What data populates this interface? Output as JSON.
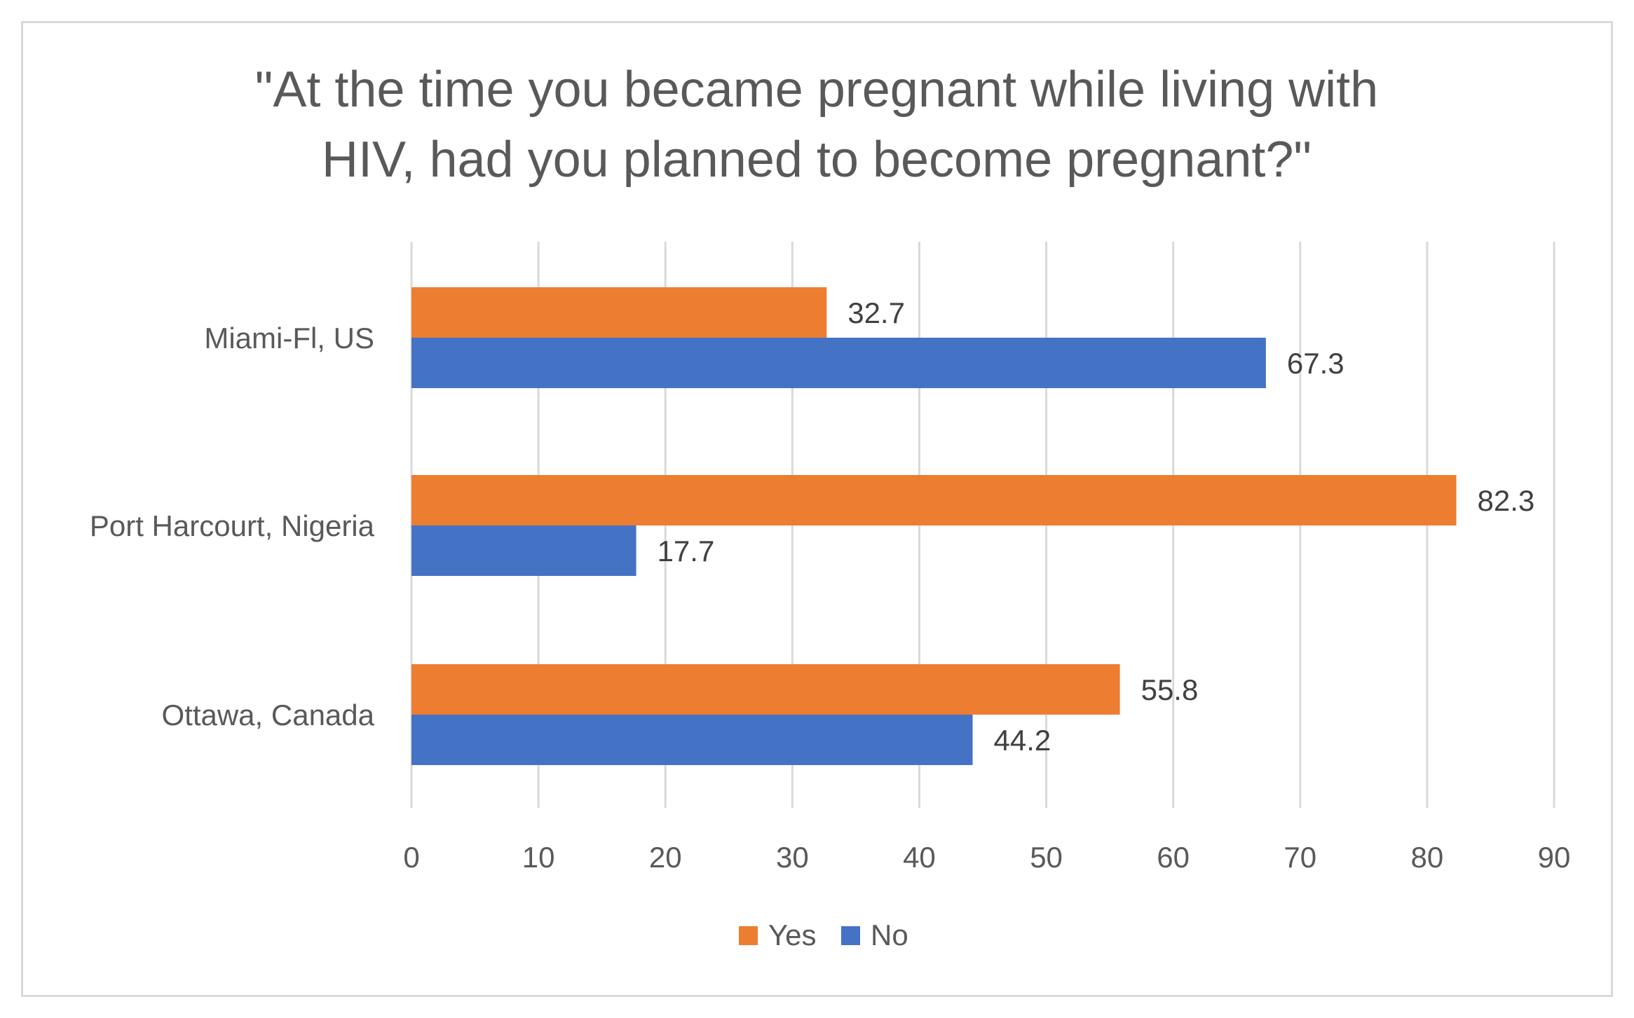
{
  "chart_data": {
    "type": "bar",
    "orientation": "horizontal",
    "title_lines": [
      "\"At the time you became pregnant while living with",
      "HIV, had you planned to become pregnant?\""
    ],
    "categories": [
      "Miami-Fl, US",
      "Port Harcourt, Nigeria",
      "Ottawa, Canada"
    ],
    "series": [
      {
        "name": "Yes",
        "color": "#ED7D31",
        "values": [
          32.7,
          82.3,
          55.8
        ],
        "labels": [
          "32.7",
          "82.3",
          "55.8"
        ]
      },
      {
        "name": "No",
        "color": "#4472C4",
        "values": [
          67.3,
          17.7,
          44.2
        ],
        "labels": [
          "67.3",
          "17.7",
          "44.2"
        ]
      }
    ],
    "xlim": [
      0,
      90
    ],
    "xticks": [
      0,
      10,
      20,
      30,
      40,
      50,
      60,
      70,
      80,
      90
    ],
    "xtick_labels": [
      "0",
      "10",
      "20",
      "30",
      "40",
      "50",
      "60",
      "70",
      "80",
      "90"
    ],
    "grid": true,
    "legend_position": "bottom",
    "xlabel": "",
    "ylabel": ""
  }
}
